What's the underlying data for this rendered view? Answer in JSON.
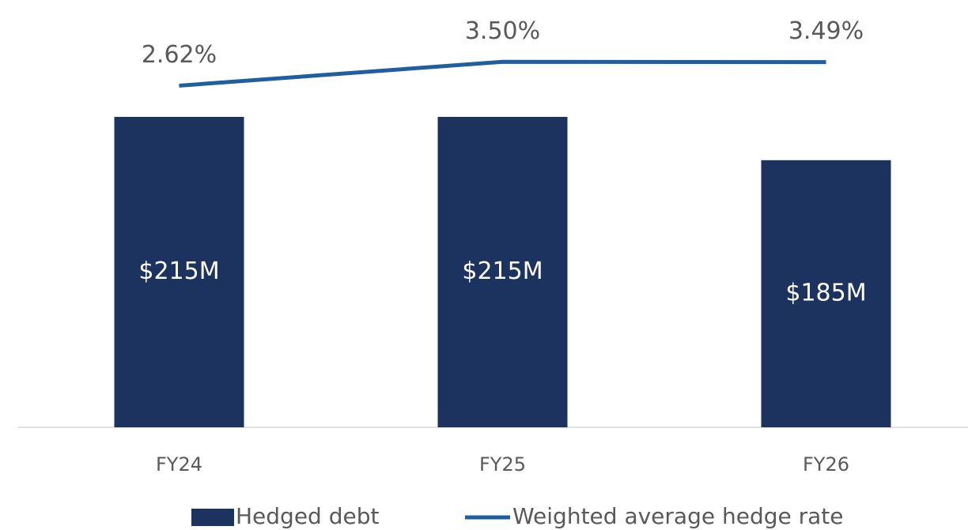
{
  "chart_data": {
    "type": "bar_line",
    "categories": [
      "FY24",
      "FY25",
      "FY26"
    ],
    "series": [
      {
        "name": "Hedged debt",
        "type": "bar",
        "color": "#1c3360",
        "values": [
          215,
          215,
          185
        ],
        "value_labels": [
          "$215M",
          "$215M",
          "$185M"
        ]
      },
      {
        "name": "Weighted average hedge rate",
        "type": "line",
        "axis": "y2",
        "color": "#1f5fa0",
        "values": [
          2.62,
          3.5,
          3.49
        ],
        "value_labels": [
          "2.62%",
          "3.50%",
          "3.49%"
        ]
      }
    ],
    "ylim": [
      0,
      285
    ],
    "y2lim": [
      -10,
      5.2
    ],
    "legend": "bottom"
  }
}
